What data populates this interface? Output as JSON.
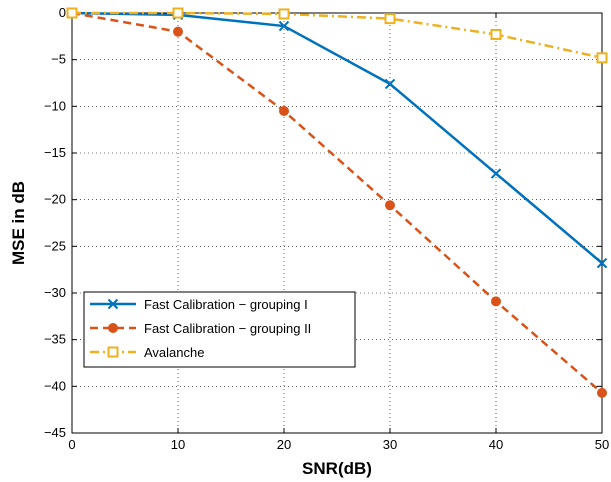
{
  "chart_data": {
    "type": "line",
    "title": "",
    "xlabel": "SNR(dB)",
    "ylabel": "MSE in dB",
    "xlim": [
      0,
      50
    ],
    "ylim": [
      -45,
      0
    ],
    "xticks": [
      0,
      10,
      20,
      30,
      40,
      50
    ],
    "yticks": [
      0,
      -5,
      -10,
      -15,
      -20,
      -25,
      -30,
      -35,
      -40,
      -45
    ],
    "xtick_labels": [
      "0",
      "10",
      "20",
      "30",
      "40",
      "50"
    ],
    "ytick_labels": [
      "0",
      "−5",
      "−10",
      "−15",
      "−20",
      "−25",
      "−30",
      "−35",
      "−40",
      "−45"
    ],
    "grid": true,
    "legend_position": "bottom-left",
    "x": [
      0,
      10,
      20,
      30,
      40,
      50
    ],
    "series": [
      {
        "name": "Fast Calibration − grouping I",
        "values": [
          0,
          -0.2,
          -1.4,
          -7.6,
          -17.2,
          -26.8
        ],
        "color": "#0072BD",
        "line_style": "solid",
        "marker": "x"
      },
      {
        "name": "Fast Calibration − grouping II",
        "values": [
          0,
          -2.0,
          -10.5,
          -20.6,
          -30.9,
          -40.7
        ],
        "color": "#D95319",
        "line_style": "dashed",
        "marker": "circle"
      },
      {
        "name": "Avalanche",
        "values": [
          0,
          0,
          -0.1,
          -0.6,
          -2.3,
          -4.8
        ],
        "color": "#EDB120",
        "line_style": "dashdot",
        "marker": "square"
      }
    ]
  }
}
